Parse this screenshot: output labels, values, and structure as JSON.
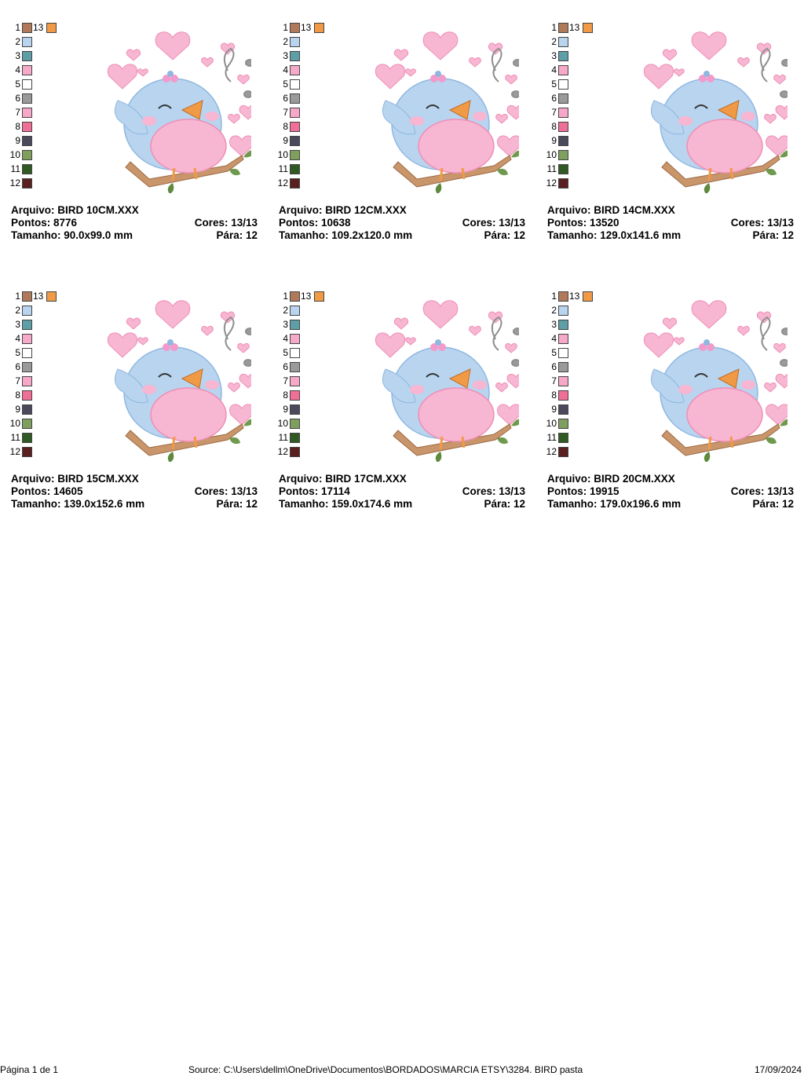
{
  "colors": {
    "c1": "#b07a5a",
    "c2": "#b8d4ef",
    "c3": "#5d9ea7",
    "c4": "#f6a9c8",
    "c5": "#ffffff",
    "c6": "#9a9a9a",
    "c7": "#f7a8c8",
    "c8": "#ef6f97",
    "c9": "#4a4a5c",
    "c10": "#7f9f5e",
    "c11": "#2f5a22",
    "c12": "#5a1f1f",
    "c13": "#f19a46"
  },
  "palette_numbers": [
    "1",
    "2",
    "3",
    "4",
    "5",
    "6",
    "7",
    "8",
    "9",
    "10",
    "11",
    "12"
  ],
  "palette_extra_number": "13",
  "designs": [
    {
      "arquivo": "Arquivo: BIRD 10CM.XXX",
      "pontos": "Pontos: 8776",
      "cores": "Cores: 13/13",
      "tamanho": "Tamanho: 90.0x99.0 mm",
      "para": "Pára: 12"
    },
    {
      "arquivo": "Arquivo: BIRD 12CM.XXX",
      "pontos": "Pontos: 10638",
      "cores": "Cores: 13/13",
      "tamanho": "Tamanho: 109.2x120.0 mm",
      "para": "Pára: 12"
    },
    {
      "arquivo": "Arquivo: BIRD 14CM.XXX",
      "pontos": "Pontos: 13520",
      "cores": "Cores: 13/13",
      "tamanho": "Tamanho: 129.0x141.6 mm",
      "para": "Pára: 12"
    },
    {
      "arquivo": "Arquivo: BIRD 15CM.XXX",
      "pontos": "Pontos: 14605",
      "cores": "Cores: 13/13",
      "tamanho": "Tamanho: 139.0x152.6 mm",
      "para": "Pára: 12"
    },
    {
      "arquivo": "Arquivo: BIRD 17CM.XXX",
      "pontos": "Pontos: 17114",
      "cores": "Cores: 13/13",
      "tamanho": "Tamanho: 159.0x174.6 mm",
      "para": "Pára: 12"
    },
    {
      "arquivo": "Arquivo: BIRD 20CM.XXX",
      "pontos": "Pontos: 19915",
      "cores": "Cores: 13/13",
      "tamanho": "Tamanho: 179.0x196.6 mm",
      "para": "Pára: 12"
    }
  ],
  "footer": {
    "page": "Página 1 de 1",
    "source": "Source: C:\\Users\\dellm\\OneDrive\\Documentos\\BORDADOS\\MARCIA ETSY\\3284. BIRD pasta",
    "date": "17/09/2024"
  }
}
